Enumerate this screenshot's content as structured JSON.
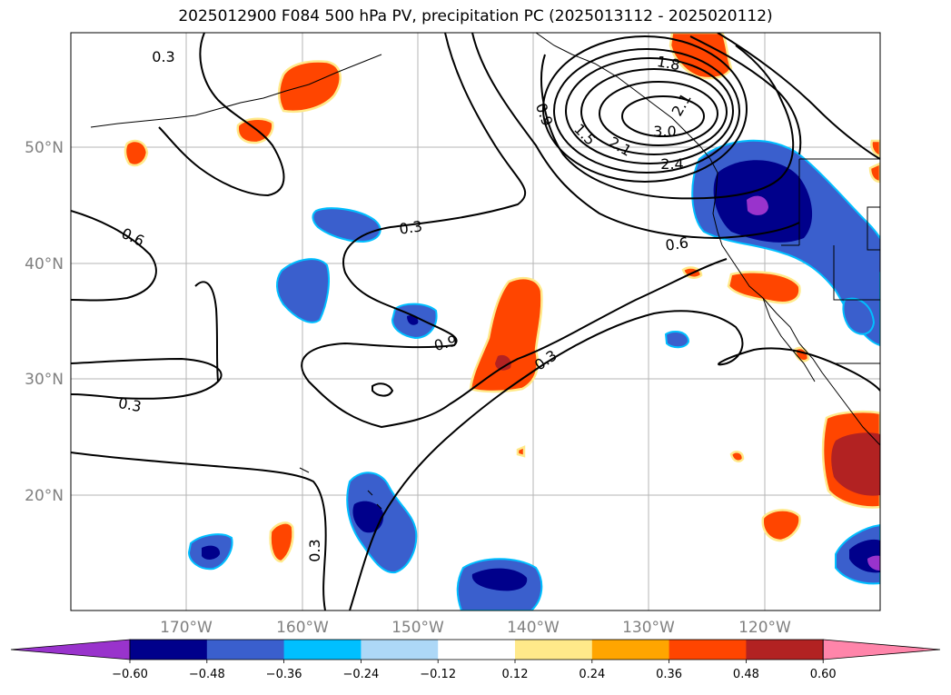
{
  "title": "2025012900 F084 500 hPa PV, precipitation PC (2025013112 - 2025020112)",
  "lon_ticks": [
    "170°W",
    "160°W",
    "150°W",
    "140°W",
    "130°W",
    "120°W"
  ],
  "lat_ticks": [
    "50°N",
    "40°N",
    "30°N",
    "20°N"
  ],
  "contour_labels": [
    "0.3",
    "0.6",
    "0.3",
    "0.3",
    "0.9",
    "0.3",
    "0.3",
    "0.9",
    "1.5",
    "2.1",
    "1.8",
    "2.1",
    "3.0",
    "2.4",
    "0.6"
  ],
  "colorbar": {
    "ticks": [
      "−0.60",
      "−0.48",
      "−0.36",
      "−0.24",
      "−0.12",
      "0.12",
      "0.24",
      "0.36",
      "0.48",
      "0.60"
    ],
    "colors": [
      "#9933cc",
      "#00008b",
      "#3a5fcd",
      "#00bfff",
      "#add8f7",
      "#ffffff",
      "#ffe98a",
      "#ffa500",
      "#ff4500",
      "#b22222",
      "#ff85aa"
    ]
  }
}
